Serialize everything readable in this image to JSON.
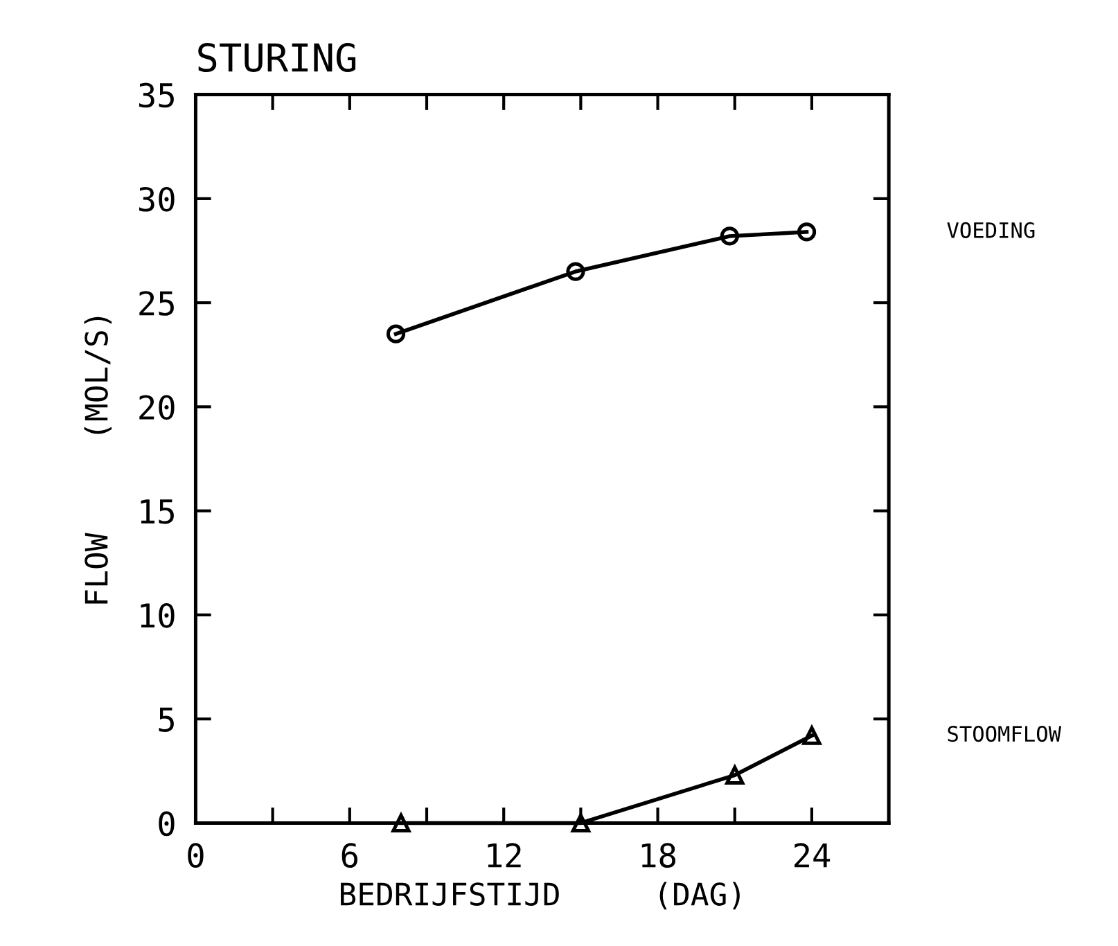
{
  "chart_data": {
    "type": "line",
    "title": "STURING",
    "xlabel": "BEDRIJFSTIJD     (DAG)",
    "ylabel": "FLOW     (MOL/S)",
    "xlim": [
      0,
      27
    ],
    "xticks": [
      0,
      {
        "value": 3,
        "label": null
      },
      6,
      {
        "value": 9,
        "label": null
      },
      12,
      {
        "value": 15,
        "label": null
      },
      18,
      {
        "value": 21,
        "label": null
      },
      24
    ],
    "ylim": [
      0,
      35
    ],
    "yticks": [
      0,
      5,
      10,
      15,
      20,
      25,
      30,
      35
    ],
    "grid": false,
    "legend": false,
    "line_style": "solid",
    "series": [
      {
        "name": "VOEDING",
        "color": "#000000",
        "marker": "circle",
        "x": [
          7.8,
          14.8,
          20.8,
          23.8
        ],
        "values": [
          23.5,
          26.5,
          28.2,
          28.4
        ]
      },
      {
        "name": "STOOMFLOW",
        "color": "#000000",
        "marker": "triangle",
        "x": [
          8,
          15,
          21,
          24
        ],
        "values": [
          0,
          0,
          2.3,
          4.2
        ]
      }
    ]
  }
}
